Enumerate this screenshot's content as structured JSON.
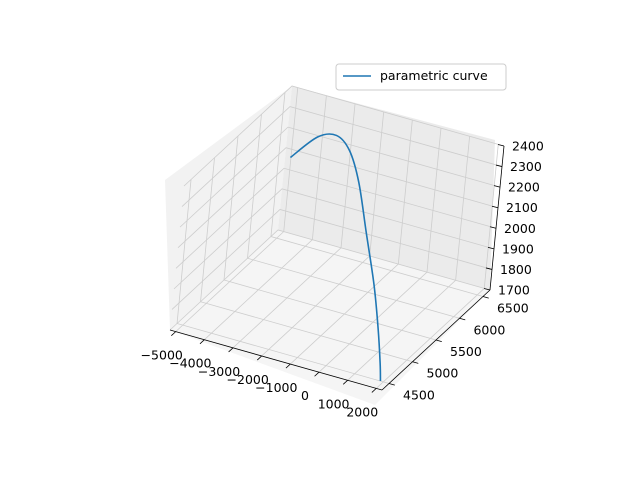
{
  "chart_data": {
    "type": "line",
    "title": "",
    "xlabel": "",
    "ylabel": "",
    "zlabel": "",
    "grid": true,
    "legend_position": "top-right",
    "x_ticks": [
      -5000,
      -4000,
      -3000,
      -2000,
      -1000,
      0,
      1000,
      2000
    ],
    "y_ticks": [
      4500,
      5000,
      5500,
      6000,
      6500
    ],
    "z_ticks": [
      1700,
      1800,
      1900,
      2000,
      2100,
      2200,
      2300,
      2400
    ],
    "x_tick_labels": [
      "−5000",
      "−4000",
      "−3000",
      "−2000",
      "−1000",
      "0",
      "1000",
      "2000"
    ],
    "y_tick_labels": [
      "4500",
      "5000",
      "5500",
      "6000",
      "6500"
    ],
    "z_tick_labels": [
      "1700",
      "1800",
      "1900",
      "2000",
      "2100",
      "2200",
      "2300",
      "2400"
    ],
    "xlim": [
      -5200,
      2200
    ],
    "ylim": [
      4350,
      6650
    ],
    "zlim": [
      1700,
      2400
    ],
    "series": [
      {
        "name": "parametric curve",
        "color": "#1f77b4",
        "x": [
          -4800,
          -3800,
          -2800,
          -1800,
          -800,
          200,
          1000,
          1500,
          1800,
          1900
        ],
        "y": [
          6500,
          6400,
          6150,
          5800,
          5400,
          5000,
          4750,
          4600,
          4520,
          4500
        ],
        "z": [
          2100,
          2260,
          2360,
          2400,
          2370,
          2250,
          2080,
          1920,
          1780,
          1700
        ]
      }
    ]
  }
}
